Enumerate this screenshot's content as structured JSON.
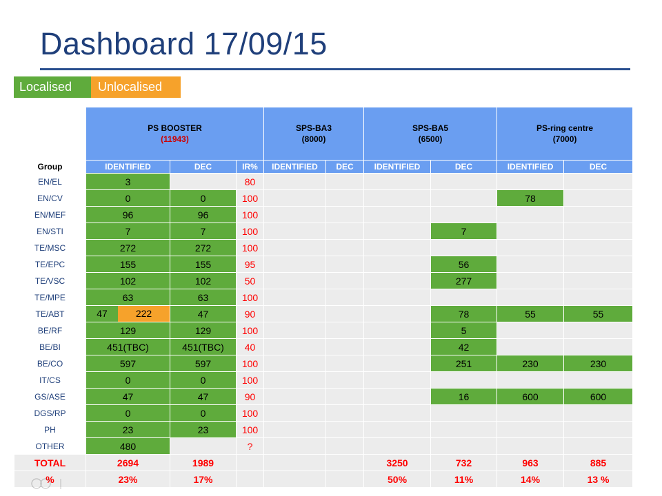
{
  "title": "Dashboard 17/09/15",
  "legend": {
    "localised": "Localised",
    "unlocalised": "Unlocalised"
  },
  "colors": {
    "localised": "#5fab3c",
    "unlocalised": "#f6a22b",
    "header": "#6a9ef1",
    "title": "#1f3f7a",
    "value_text": "#ff0000"
  },
  "sites": [
    {
      "name": "PS BOOSTER",
      "count": "(11943)"
    },
    {
      "name": "SPS-BA3",
      "count": "(8000)"
    },
    {
      "name": "SPS-BA5",
      "count": "(6500)"
    },
    {
      "name": "PS-ring centre",
      "count": "(7000)"
    }
  ],
  "columns": [
    "Group",
    "IDENTIFIED",
    "DEC",
    "IR%",
    "IDENTIFIED",
    "DEC",
    "IDENTIFIED",
    "DEC",
    "IDENTIFIED",
    "DEC"
  ],
  "rows": [
    {
      "group": "EN/EL",
      "psb_id": "3",
      "psb_dec": "",
      "ir": "80",
      "ba3_id": "",
      "ba3_dec": "",
      "ba5_id": "",
      "ba5_dec": "",
      "prc_id": "",
      "prc_dec": ""
    },
    {
      "group": "EN/CV",
      "psb_id": "0",
      "psb_dec": "0",
      "ir": "100",
      "ba3_id": "",
      "ba3_dec": "",
      "ba5_id": "",
      "ba5_dec": "",
      "prc_id": "78",
      "prc_dec": ""
    },
    {
      "group": "EN/MEF",
      "psb_id": "96",
      "psb_dec": "96",
      "ir": "100",
      "ba3_id": "",
      "ba3_dec": "",
      "ba5_id": "",
      "ba5_dec": "",
      "prc_id": "",
      "prc_dec": ""
    },
    {
      "group": "EN/STI",
      "psb_id": "7",
      "psb_dec": "7",
      "ir": "100",
      "ba3_id": "",
      "ba3_dec": "",
      "ba5_id": "",
      "ba5_dec": "7",
      "prc_id": "",
      "prc_dec": ""
    },
    {
      "group": "TE/MSC",
      "psb_id": "272",
      "psb_dec": "272",
      "ir": "100",
      "ba3_id": "",
      "ba3_dec": "",
      "ba5_id": "",
      "ba5_dec": "",
      "prc_id": "",
      "prc_dec": ""
    },
    {
      "group": "TE/EPC",
      "psb_id": "155",
      "psb_dec": "155",
      "ir": "95",
      "ba3_id": "",
      "ba3_dec": "",
      "ba5_id": "",
      "ba5_dec": "56",
      "prc_id": "",
      "prc_dec": ""
    },
    {
      "group": "TE/VSC",
      "psb_id": "102",
      "psb_dec": "102",
      "ir": "50",
      "ba3_id": "",
      "ba3_dec": "",
      "ba5_id": "",
      "ba5_dec": "277",
      "prc_id": "",
      "prc_dec": ""
    },
    {
      "group": "TE/MPE",
      "psb_id": "63",
      "psb_dec": "63",
      "ir": "100",
      "ba3_id": "",
      "ba3_dec": "",
      "ba5_id": "",
      "ba5_dec": "",
      "prc_id": "",
      "prc_dec": ""
    },
    {
      "group": "TE/ABT",
      "psb_id_a": "47",
      "psb_id_b": "222",
      "psb_dec": "47",
      "ir": "90",
      "ba3_id": "",
      "ba3_dec": "",
      "ba5_id": "",
      "ba5_dec": "78",
      "prc_id": "55",
      "prc_dec": "55"
    },
    {
      "group": "BE/RF",
      "psb_id": "129",
      "psb_dec": "129",
      "ir": "100",
      "ba3_id": "",
      "ba3_dec": "",
      "ba5_id": "",
      "ba5_dec": "5",
      "prc_id": "",
      "prc_dec": ""
    },
    {
      "group": "BE/BI",
      "psb_id": "451(TBC)",
      "psb_dec": "451(TBC)",
      "ir": "40",
      "ba3_id": "",
      "ba3_dec": "",
      "ba5_id": "",
      "ba5_dec": "42",
      "prc_id": "",
      "prc_dec": ""
    },
    {
      "group": "BE/CO",
      "psb_id": "597",
      "psb_dec": "597",
      "ir": "100",
      "ba3_id": "",
      "ba3_dec": "",
      "ba5_id": "",
      "ba5_dec": "251",
      "prc_id": "230",
      "prc_dec": "230"
    },
    {
      "group": "IT/CS",
      "psb_id": "0",
      "psb_dec": "0",
      "ir": "100",
      "ba3_id": "",
      "ba3_dec": "",
      "ba5_id": "",
      "ba5_dec": "",
      "prc_id": "",
      "prc_dec": ""
    },
    {
      "group": "GS/ASE",
      "psb_id": "47",
      "psb_dec": "47",
      "ir": "90",
      "ba3_id": "",
      "ba3_dec": "",
      "ba5_id": "",
      "ba5_dec": "16",
      "prc_id": "600",
      "prc_dec": "600"
    },
    {
      "group": "DGS/RP",
      "psb_id": "0",
      "psb_dec": "0",
      "ir": "100",
      "ba3_id": "",
      "ba3_dec": "",
      "ba5_id": "",
      "ba5_dec": "",
      "prc_id": "",
      "prc_dec": ""
    },
    {
      "group": "PH",
      "psb_id": "23",
      "psb_dec": "23",
      "ir": "100",
      "ba3_id": "",
      "ba3_dec": "",
      "ba5_id": "",
      "ba5_dec": "",
      "prc_id": "",
      "prc_dec": ""
    },
    {
      "group": "OTHER",
      "psb_id": "480",
      "psb_dec": "",
      "ir": "?",
      "ba3_id": "",
      "ba3_dec": "",
      "ba5_id": "",
      "ba5_dec": "",
      "prc_id": "",
      "prc_dec": ""
    }
  ],
  "total": {
    "label": "TOTAL",
    "psb_id": "2694",
    "psb_dec": "1989",
    "ba5_id": "3250",
    "ba5_dec": "732",
    "prc_id": "963",
    "prc_dec": "885"
  },
  "percent": {
    "label": "%",
    "psb_id": "23%",
    "psb_dec": "17%",
    "ba5_id": "50%",
    "ba5_dec": "11%",
    "prc_id": "14%",
    "prc_dec": "13 %"
  }
}
